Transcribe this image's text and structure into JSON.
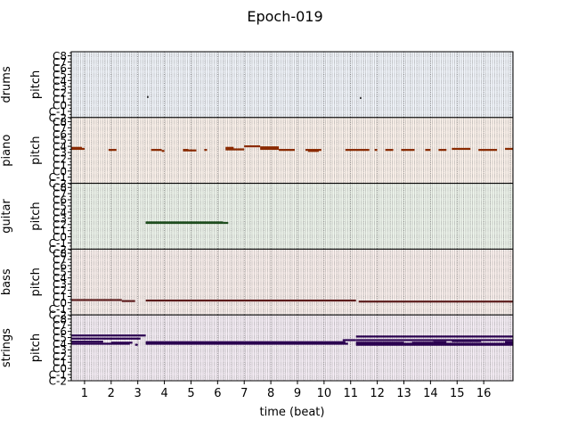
{
  "chart_data": {
    "type": "pianoroll",
    "title": "Epoch-019",
    "xlabel": "time (beat)",
    "x_ticks": [
      "1",
      "2",
      "3",
      "4",
      "5",
      "6",
      "7",
      "8",
      "9",
      "10",
      "11",
      "12",
      "13",
      "14",
      "15",
      "16"
    ],
    "xlim": [
      0.5,
      17.1
    ],
    "y_tick_labels": [
      "C-2",
      "C-1",
      "C0",
      "C1",
      "C2",
      "C3",
      "C4",
      "C5",
      "C6",
      "C7",
      "C8"
    ],
    "pitch_ylabel": "pitch",
    "grid": true,
    "tracks": [
      {
        "name": "drums",
        "background": "#f1f5fb",
        "note_color": "#111111",
        "notes": [
          {
            "start": 3.35,
            "end": 3.4,
            "pitch": 40
          },
          {
            "start": 11.35,
            "end": 11.4,
            "pitch": 38
          }
        ]
      },
      {
        "name": "piano",
        "background": "#fdf3ec",
        "note_color": "#8a2a00",
        "notes": [
          {
            "start": 0.5,
            "end": 0.9,
            "pitch": 69
          },
          {
            "start": 0.5,
            "end": 1.0,
            "pitch": 67
          },
          {
            "start": 1.9,
            "end": 2.2,
            "pitch": 65
          },
          {
            "start": 3.5,
            "end": 3.9,
            "pitch": 65
          },
          {
            "start": 3.9,
            "end": 4.0,
            "pitch": 63
          },
          {
            "start": 4.7,
            "end": 4.9,
            "pitch": 65
          },
          {
            "start": 4.7,
            "end": 5.2,
            "pitch": 64
          },
          {
            "start": 5.5,
            "end": 5.6,
            "pitch": 65
          },
          {
            "start": 6.3,
            "end": 6.6,
            "pitch": 69
          },
          {
            "start": 6.3,
            "end": 7.0,
            "pitch": 66
          },
          {
            "start": 7.0,
            "end": 7.6,
            "pitch": 72
          },
          {
            "start": 7.6,
            "end": 8.3,
            "pitch": 70
          },
          {
            "start": 7.6,
            "end": 8.3,
            "pitch": 67
          },
          {
            "start": 8.3,
            "end": 8.9,
            "pitch": 65
          },
          {
            "start": 9.3,
            "end": 9.9,
            "pitch": 65
          },
          {
            "start": 9.4,
            "end": 9.8,
            "pitch": 63
          },
          {
            "start": 10.8,
            "end": 11.7,
            "pitch": 65
          },
          {
            "start": 11.9,
            "end": 12.0,
            "pitch": 65
          },
          {
            "start": 12.3,
            "end": 12.6,
            "pitch": 65
          },
          {
            "start": 12.9,
            "end": 13.4,
            "pitch": 65
          },
          {
            "start": 13.8,
            "end": 14.0,
            "pitch": 65
          },
          {
            "start": 14.3,
            "end": 14.6,
            "pitch": 65
          },
          {
            "start": 14.8,
            "end": 15.5,
            "pitch": 67
          },
          {
            "start": 15.8,
            "end": 16.5,
            "pitch": 65
          },
          {
            "start": 16.8,
            "end": 17.1,
            "pitch": 67
          }
        ]
      },
      {
        "name": "guitar",
        "background": "#eef5ec",
        "note_color": "#1e4d1e",
        "notes": [
          {
            "start": 3.3,
            "end": 6.2,
            "pitch": 52
          },
          {
            "start": 3.3,
            "end": 6.2,
            "pitch": 51
          },
          {
            "start": 6.2,
            "end": 6.4,
            "pitch": 51
          }
        ]
      },
      {
        "name": "bass",
        "background": "#fbf0ed",
        "note_color": "#5c1c1c",
        "notes": [
          {
            "start": 0.5,
            "end": 2.4,
            "pitch": 29
          },
          {
            "start": 2.4,
            "end": 2.9,
            "pitch": 27
          },
          {
            "start": 3.3,
            "end": 11.2,
            "pitch": 28
          },
          {
            "start": 11.3,
            "end": 17.1,
            "pitch": 26
          }
        ]
      },
      {
        "name": "strings",
        "background": "#f6eef6",
        "note_color": "#2a0050",
        "notes": [
          {
            "start": 0.5,
            "end": 3.3,
            "pitch": 88
          },
          {
            "start": 0.5,
            "end": 3.1,
            "pitch": 82
          },
          {
            "start": 0.5,
            "end": 1.7,
            "pitch": 76
          },
          {
            "start": 2.0,
            "end": 2.8,
            "pitch": 74
          },
          {
            "start": 0.5,
            "end": 2.7,
            "pitch": 72
          },
          {
            "start": 3.3,
            "end": 10.8,
            "pitch": 75
          },
          {
            "start": 3.3,
            "end": 10.9,
            "pitch": 72
          },
          {
            "start": 2.9,
            "end": 3.0,
            "pitch": 70
          },
          {
            "start": 11.2,
            "end": 17.1,
            "pitch": 86
          },
          {
            "start": 10.7,
            "end": 11.2,
            "pitch": 79
          },
          {
            "start": 11.2,
            "end": 17.1,
            "pitch": 79
          },
          {
            "start": 11.2,
            "end": 12.2,
            "pitch": 74
          },
          {
            "start": 12.2,
            "end": 13.0,
            "pitch": 74
          },
          {
            "start": 13.3,
            "end": 14.1,
            "pitch": 74
          },
          {
            "start": 14.1,
            "end": 14.6,
            "pitch": 75
          },
          {
            "start": 14.8,
            "end": 15.9,
            "pitch": 77
          },
          {
            "start": 16.8,
            "end": 17.1,
            "pitch": 75
          },
          {
            "start": 11.2,
            "end": 17.1,
            "pitch": 72
          },
          {
            "start": 11.2,
            "end": 17.1,
            "pitch": 70
          }
        ]
      }
    ]
  }
}
